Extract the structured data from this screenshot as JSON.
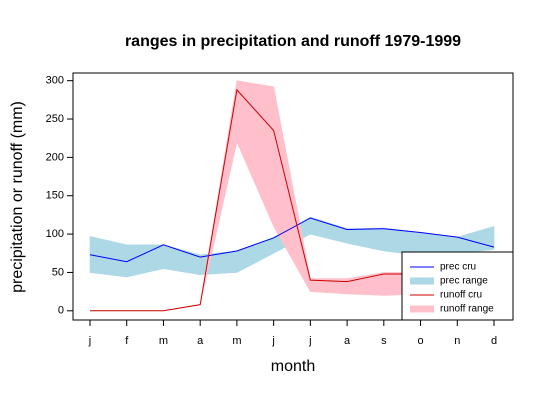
{
  "chart_data": {
    "type": "line",
    "title": "ranges in precipitation and runoff 1979-1999",
    "x_label": "month",
    "y_label": "precipitation or runoff (mm)",
    "categories": [
      "j",
      "f",
      "m",
      "a",
      "m",
      "j",
      "j",
      "a",
      "s",
      "o",
      "n",
      "d"
    ],
    "ylim": [
      -12,
      310
    ],
    "yticks": [
      0,
      50,
      100,
      150,
      200,
      250,
      300
    ],
    "legend_position": "bottom-right",
    "series": [
      {
        "name": "prec cru",
        "color": "#0000ff",
        "values": [
          73,
          64,
          86,
          70,
          78,
          95,
          121,
          106,
          107,
          102,
          96,
          83
        ]
      },
      {
        "name": "prec range",
        "color": "#add8e6",
        "lower": [
          50,
          44,
          55,
          47,
          50,
          75,
          100,
          88,
          78,
          72,
          75,
          80
        ],
        "upper": [
          97,
          86,
          86,
          73,
          78,
          96,
          122,
          107,
          108,
          102,
          96,
          110
        ]
      },
      {
        "name": "runoff cru",
        "color": "#cc0000",
        "values": [
          0,
          0,
          0,
          8,
          288,
          235,
          40,
          38,
          48,
          48,
          50,
          50
        ]
      },
      {
        "name": "runoff range",
        "color": "#ffc0cb",
        "lower": [
          0,
          0,
          0,
          8,
          220,
          110,
          25,
          22,
          20,
          22,
          25,
          28
        ],
        "upper": [
          0,
          0,
          0,
          8,
          300,
          292,
          42,
          42,
          50,
          50,
          52,
          55
        ]
      }
    ]
  }
}
